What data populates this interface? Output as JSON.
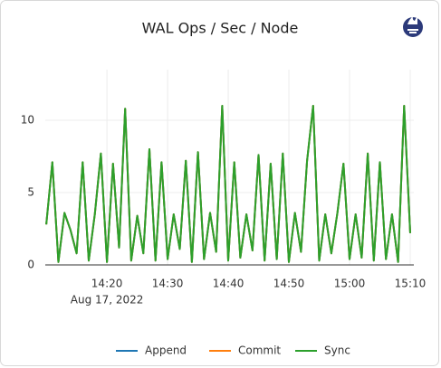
{
  "chart_data": {
    "type": "line",
    "title": "WAL Ops / Sec / Node",
    "x": [
      "14:10",
      "14:11",
      "14:12",
      "14:13",
      "14:14",
      "14:15",
      "14:16",
      "14:17",
      "14:18",
      "14:19",
      "14:20",
      "14:21",
      "14:22",
      "14:23",
      "14:24",
      "14:25",
      "14:26",
      "14:27",
      "14:28",
      "14:29",
      "14:30",
      "14:31",
      "14:32",
      "14:33",
      "14:34",
      "14:35",
      "14:36",
      "14:37",
      "14:38",
      "14:39",
      "14:40",
      "14:41",
      "14:42",
      "14:43",
      "14:44",
      "14:45",
      "14:46",
      "14:47",
      "14:48",
      "14:49",
      "14:50",
      "14:51",
      "14:52",
      "14:53",
      "14:54",
      "14:55",
      "14:56",
      "14:57",
      "14:58",
      "14:59",
      "15:00",
      "15:01",
      "15:02",
      "15:03",
      "15:04",
      "15:05",
      "15:06",
      "15:07",
      "15:08",
      "15:09",
      "15:10"
    ],
    "series": [
      {
        "name": "Append",
        "color": "#1f77b4",
        "values": [
          2.8,
          7.1,
          0.2,
          3.6,
          2.4,
          0.8,
          7.1,
          0.3,
          3.5,
          7.7,
          0.2,
          7.0,
          1.2,
          10.8,
          0.3,
          3.4,
          0.8,
          8.0,
          0.3,
          7.1,
          0.4,
          3.5,
          1.1,
          7.2,
          0.2,
          7.8,
          0.4,
          3.6,
          0.9,
          11.0,
          0.3,
          7.1,
          0.5,
          3.5,
          1.0,
          7.6,
          0.3,
          7.0,
          0.4,
          7.7,
          0.2,
          3.6,
          0.9,
          7.2,
          11.0,
          0.3,
          3.5,
          0.8,
          3.6,
          7.0,
          0.4,
          3.5,
          0.5,
          7.7,
          0.3,
          7.1,
          0.4,
          3.5,
          0.2,
          11.0,
          2.2
        ]
      },
      {
        "name": "Commit",
        "color": "#ff7f0e",
        "values": [
          2.8,
          7.1,
          0.2,
          3.6,
          2.4,
          0.8,
          7.1,
          0.3,
          3.5,
          7.7,
          0.2,
          7.0,
          1.2,
          10.8,
          0.3,
          3.4,
          0.8,
          8.0,
          0.3,
          7.1,
          0.4,
          3.5,
          1.1,
          7.2,
          0.2,
          7.8,
          0.4,
          3.6,
          0.9,
          11.0,
          0.3,
          7.1,
          0.5,
          3.5,
          1.0,
          7.6,
          0.3,
          7.0,
          0.4,
          7.7,
          0.2,
          3.6,
          0.9,
          7.2,
          11.0,
          0.3,
          3.5,
          0.8,
          3.6,
          7.0,
          0.4,
          3.5,
          0.5,
          7.7,
          0.3,
          7.1,
          0.4,
          3.5,
          0.2,
          11.0,
          2.2
        ]
      },
      {
        "name": "Sync",
        "color": "#2ca02c",
        "values": [
          2.8,
          7.1,
          0.2,
          3.6,
          2.4,
          0.8,
          7.1,
          0.3,
          3.5,
          7.7,
          0.2,
          7.0,
          1.2,
          10.8,
          0.3,
          3.4,
          0.8,
          8.0,
          0.3,
          7.1,
          0.4,
          3.5,
          1.1,
          7.2,
          0.2,
          7.8,
          0.4,
          3.6,
          0.9,
          11.0,
          0.3,
          7.1,
          0.5,
          3.5,
          1.0,
          7.6,
          0.3,
          7.0,
          0.4,
          7.7,
          0.2,
          3.6,
          0.9,
          7.2,
          11.0,
          0.3,
          3.5,
          0.8,
          3.6,
          7.0,
          0.4,
          3.5,
          0.5,
          7.7,
          0.3,
          7.1,
          0.4,
          3.5,
          0.2,
          11.0,
          2.2
        ]
      }
    ],
    "xlim": [
      "14:09:50",
      "15:10:36"
    ],
    "xticks": [
      "14:20",
      "14:30",
      "14:40",
      "14:50",
      "15:00",
      "15:10"
    ],
    "x_date_label": "Aug 17, 2022",
    "ylim": [
      0,
      13.5
    ],
    "yticks": [
      0,
      5,
      10
    ],
    "grid": true,
    "legend": "bottom"
  }
}
